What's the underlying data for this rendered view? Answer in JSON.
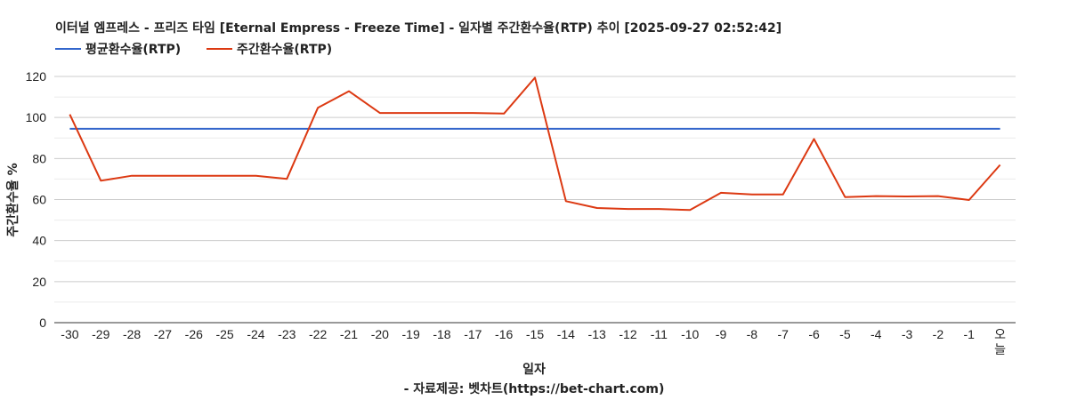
{
  "chart_data": {
    "type": "line",
    "title": "이터널 엠프레스 - 프리즈 타임 [Eternal Empress - Freeze Time] - 일자별 주간환수율(RTP) 추이 [2025-09-27 02:52:42]",
    "xlabel": "일자",
    "ylabel": "주간환수율 %",
    "source": "- 자료제공: 벳차트(https://bet-chart.com)",
    "ylim": [
      0,
      120
    ],
    "yticks": [
      0,
      20,
      40,
      60,
      80,
      100,
      120
    ],
    "grid": true,
    "legend_position": "top-left",
    "categories": [
      "-30",
      "-29",
      "-28",
      "-27",
      "-26",
      "-25",
      "-24",
      "-23",
      "-22",
      "-21",
      "-20",
      "-19",
      "-18",
      "-17",
      "-16",
      "-15",
      "-14",
      "-13",
      "-12",
      "-11",
      "-10",
      "-9",
      "-8",
      "-7",
      "-6",
      "-5",
      "-4",
      "-3",
      "-2",
      "-1",
      "오늘"
    ],
    "series": [
      {
        "name": "평균환수율(RTP)",
        "color": "#3366cc",
        "values": [
          94.5,
          94.5,
          94.5,
          94.5,
          94.5,
          94.5,
          94.5,
          94.5,
          94.5,
          94.5,
          94.5,
          94.5,
          94.5,
          94.5,
          94.5,
          94.5,
          94.5,
          94.5,
          94.5,
          94.5,
          94.5,
          94.5,
          94.5,
          94.5,
          94.5,
          94.5,
          94.5,
          94.5,
          94.5,
          94.5,
          94.5
        ]
      },
      {
        "name": "주간환수율(RTP)",
        "color": "#dc3912",
        "values": [
          101.5,
          69.2,
          71.6,
          71.6,
          71.6,
          71.6,
          71.6,
          70.1,
          104.7,
          112.8,
          102.2,
          102.2,
          102.2,
          102.2,
          101.9,
          119.4,
          59.2,
          55.9,
          55.4,
          55.4,
          54.9,
          63.3,
          62.5,
          62.5,
          89.5,
          61.2,
          61.7,
          61.5,
          61.7,
          59.8,
          76.9
        ]
      }
    ]
  }
}
